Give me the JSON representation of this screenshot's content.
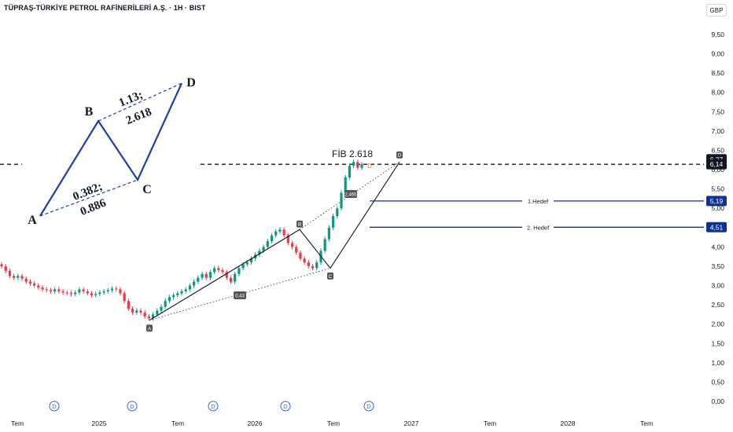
{
  "header": {
    "title": "TÜPRAŞ-TÜRKİYE PETROL RAFİNERİLERİ A.Ş. · 1H · BIST",
    "currency": "GBP"
  },
  "colors": {
    "up": "#089981",
    "down": "#f23645",
    "pattern": "#1e3ea8",
    "target": "#0c3299",
    "text": "#131722"
  },
  "chart_data": {
    "type": "candlestick",
    "y_axis": {
      "ticks": [
        "9,50",
        "9,00",
        "8,50",
        "8,00",
        "7,50",
        "7,00",
        "6,50",
        "6,00",
        "5,50",
        "5,00",
        "4,50",
        "4,00",
        "3,50",
        "3,00",
        "2,50",
        "2,00",
        "1,50",
        "1,00",
        "0,50",
        "0,00"
      ],
      "range": [
        0,
        9.5
      ]
    },
    "x_axis": {
      "ticks": [
        "Tem",
        "2025",
        "Tem",
        "2026",
        "Tem",
        "2027",
        "Tem",
        "2028",
        "Tem"
      ]
    },
    "price_labels": [
      {
        "text": "6,27",
        "value": 6.27,
        "style": "dark"
      },
      {
        "text": "6,14",
        "value": 6.14,
        "style": "dark"
      },
      {
        "text": "5,19",
        "value": 5.19,
        "style": "target"
      },
      {
        "text": "4,51",
        "value": 4.51,
        "style": "target"
      }
    ],
    "fib_label": "FİB 2.618",
    "fib_level": 6.14,
    "targets": [
      {
        "label": "1.Hedef",
        "value": 5.19
      },
      {
        "label": "2. Hedef",
        "value": 4.51
      }
    ],
    "harmonic_points": [
      {
        "label": "A",
        "price": 2.1
      },
      {
        "label": "B",
        "price": 4.45
      },
      {
        "label": "C",
        "price": 3.45
      },
      {
        "label": "D",
        "price": 6.2
      }
    ],
    "harmonic_ratios": [
      "0,43",
      "2,465"
    ],
    "schematic": {
      "points": [
        "A",
        "B",
        "C",
        "D"
      ],
      "ratio_bc": [
        "1.13;",
        "2.618"
      ],
      "ratio_ac": [
        "0.382;",
        "0.886"
      ]
    },
    "dividend_marker": "D",
    "series_close": [
      3.5,
      3.38,
      3.25,
      3.2,
      3.25,
      3.18,
      3.1,
      3.05,
      3.0,
      2.95,
      2.9,
      2.88,
      2.85,
      2.9,
      2.85,
      2.82,
      2.8,
      2.78,
      2.82,
      2.9,
      2.85,
      2.8,
      2.75,
      2.78,
      2.82,
      2.85,
      2.88,
      2.92,
      2.9,
      2.8,
      2.6,
      2.4,
      2.3,
      2.35,
      2.3,
      2.2,
      2.15,
      2.25,
      2.35,
      2.45,
      2.6,
      2.7,
      2.75,
      2.8,
      2.85,
      2.9,
      3.0,
      3.1,
      3.2,
      3.3,
      3.2,
      3.35,
      3.45,
      3.4,
      3.35,
      3.2,
      3.1,
      3.3,
      3.45,
      3.55,
      3.6,
      3.7,
      3.8,
      3.9,
      4.0,
      4.15,
      4.3,
      4.4,
      4.45,
      4.3,
      4.1,
      4.0,
      3.85,
      3.7,
      3.6,
      3.5,
      3.45,
      3.6,
      3.9,
      4.2,
      4.5,
      4.8,
      5.0,
      5.4,
      5.8,
      6.1,
      6.2,
      6.05,
      6.14
    ]
  }
}
